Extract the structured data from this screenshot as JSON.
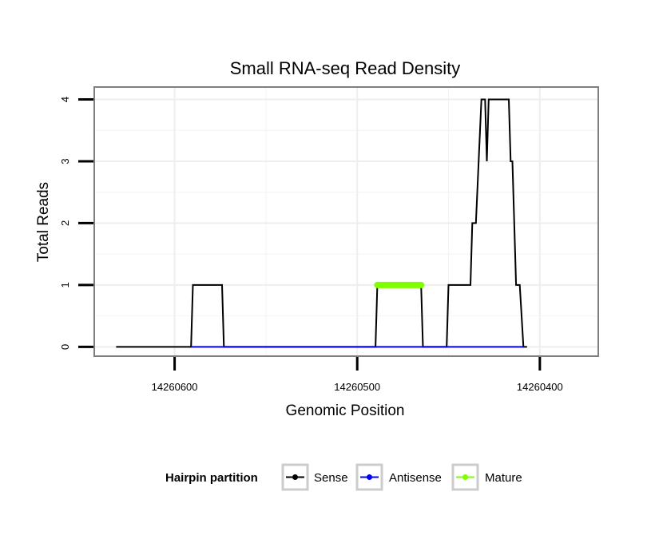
{
  "chart_data": {
    "type": "line",
    "title": "Small RNA-seq Read Density",
    "xlabel": "Genomic Position",
    "ylabel": "Total Reads",
    "x_reversed": true,
    "xlim": [
      14260644,
      14260368
    ],
    "ylim": [
      -0.15,
      4.2
    ],
    "x_ticks": [
      14260600,
      14260500,
      14260400
    ],
    "x_tick_labels": [
      "14260600",
      "14260500",
      "14260400"
    ],
    "y_ticks": [
      0,
      1,
      2,
      3,
      4
    ],
    "y_tick_labels": [
      "0",
      "1",
      "2",
      "3",
      "4"
    ],
    "grid": true,
    "legend": {
      "title": "Hairpin partition",
      "position": "bottom",
      "items": [
        {
          "name": "Sense",
          "color": "#000000"
        },
        {
          "name": "Antisense",
          "color": "#0000ff"
        },
        {
          "name": "Mature",
          "color": "#7fff00"
        }
      ]
    },
    "series": [
      {
        "name": "Sense",
        "color": "#000000",
        "points": [
          [
            14260632,
            0
          ],
          [
            14260591,
            0
          ],
          [
            14260590,
            1
          ],
          [
            14260574,
            1
          ],
          [
            14260573,
            0
          ],
          [
            14260490,
            0
          ],
          [
            14260489,
            1
          ],
          [
            14260465,
            1
          ],
          [
            14260464,
            0
          ],
          [
            14260451,
            0
          ],
          [
            14260450,
            1
          ],
          [
            14260438,
            1
          ],
          [
            14260437,
            2
          ],
          [
            14260435,
            2
          ],
          [
            14260432,
            4
          ],
          [
            14260430,
            4
          ],
          [
            14260429,
            3
          ],
          [
            14260428,
            4
          ],
          [
            14260417,
            4
          ],
          [
            14260416,
            3
          ],
          [
            14260415,
            3
          ],
          [
            14260413,
            1
          ],
          [
            14260411,
            1
          ],
          [
            14260409,
            0
          ],
          [
            14260407,
            0
          ]
        ]
      },
      {
        "name": "Antisense",
        "color": "#0000ff",
        "points": [
          [
            14260591,
            0
          ],
          [
            14260573,
            0
          ],
          [
            14260489,
            0
          ],
          [
            14260464,
            0
          ],
          [
            14260450,
            0
          ],
          [
            14260409,
            0
          ]
        ]
      },
      {
        "name": "Mature",
        "color": "#7fff00",
        "points": [
          [
            14260489,
            1
          ],
          [
            14260465,
            1
          ]
        ]
      }
    ]
  }
}
